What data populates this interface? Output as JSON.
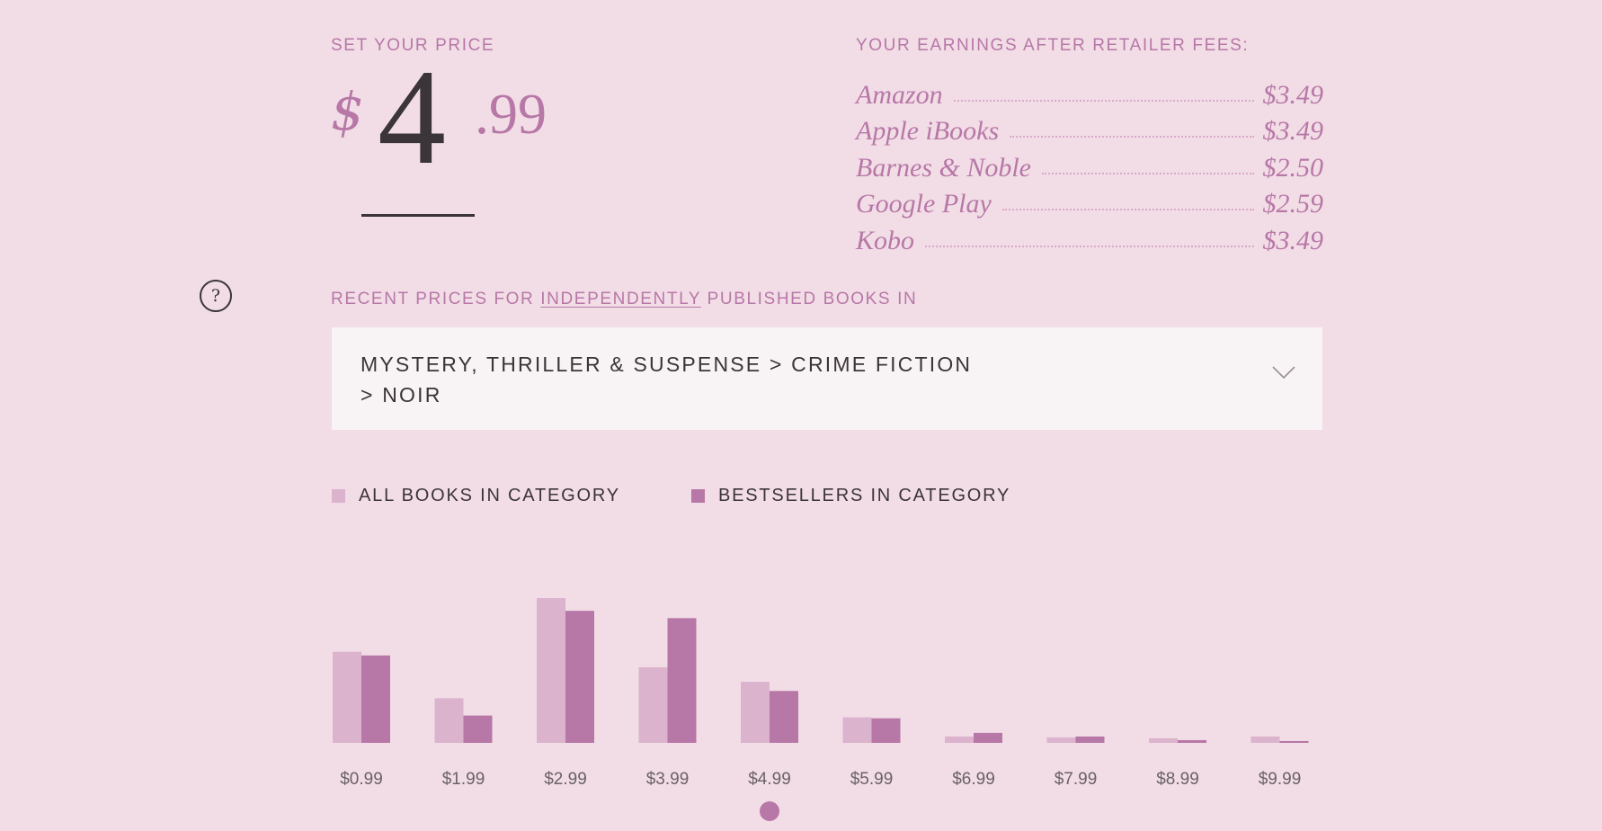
{
  "price_setter": {
    "label": "SET YOUR PRICE",
    "currency_symbol": "$",
    "dollars": "4",
    "cents": ".99"
  },
  "earnings": {
    "label": "YOUR EARNINGS AFTER RETAILER FEES:",
    "rows": [
      {
        "retailer": "Amazon",
        "amount": "$3.49"
      },
      {
        "retailer": "Apple iBooks",
        "amount": "$3.49"
      },
      {
        "retailer": "Barnes & Noble",
        "amount": "$2.50"
      },
      {
        "retailer": "Google Play",
        "amount": "$2.59"
      },
      {
        "retailer": "Kobo",
        "amount": "$3.49"
      }
    ]
  },
  "recent_prices": {
    "heading_prefix": "RECENT PRICES FOR",
    "heading_link": "INDEPENDENTLY",
    "heading_suffix": "PUBLISHED BOOKS IN"
  },
  "category": {
    "selected": "MYSTERY, THRILLER & SUSPENSE > CRIME FICTION > NOIR"
  },
  "help": {
    "icon": "question-mark-icon",
    "glyph": "?"
  },
  "colors": {
    "background": "#f2dde6",
    "accent": "#b777a7",
    "all_books": "#dbb3cd",
    "bestsellers": "#b777a7",
    "dark_text": "#3b3438"
  },
  "chart_data": {
    "type": "bar",
    "categories": [
      "$0.99",
      "$1.99",
      "$2.99",
      "$3.99",
      "$4.99",
      "$5.99",
      "$6.99",
      "$7.99",
      "$8.99",
      "$9.99"
    ],
    "series": [
      {
        "name": "ALL BOOKS IN CATEGORY",
        "color": "#dbb3cd",
        "values": [
          100,
          49,
          159,
          83,
          67,
          28,
          7,
          6,
          5,
          7
        ]
      },
      {
        "name": "BESTSELLERS IN CATEGORY",
        "color": "#b777a7",
        "values": [
          96,
          30,
          145,
          137,
          57,
          27,
          11,
          7,
          3,
          2
        ]
      }
    ],
    "ylim": [
      0,
      160
    ],
    "legend": "top-left",
    "grid": false,
    "selected_category_index": 4
  }
}
